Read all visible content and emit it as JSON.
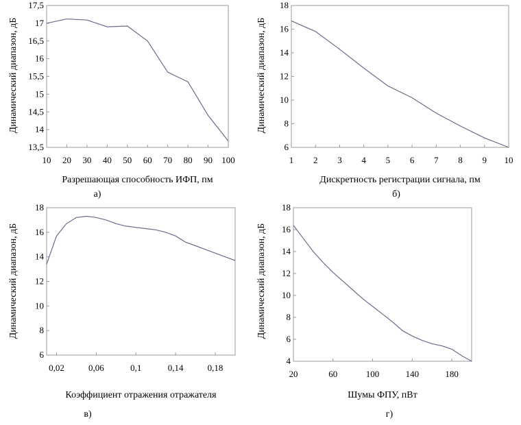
{
  "chart_data": [
    {
      "type": "line",
      "panel_label": "а)",
      "xlabel": "Разрешающая способность ИФП, пм",
      "ylabel": "Динамический диапазон, дБ",
      "xlim": [
        10,
        100
      ],
      "ylim": [
        13.5,
        17.5
      ],
      "x_ticks": [
        10,
        20,
        30,
        40,
        50,
        60,
        70,
        80,
        90,
        100
      ],
      "x_tick_labels": [
        "10",
        "20",
        "30",
        "40",
        "50",
        "60",
        "70",
        "80",
        "90",
        "100"
      ],
      "y_ticks": [
        13.5,
        14,
        14.5,
        15,
        15.5,
        16,
        16.5,
        17,
        17.5
      ],
      "y_tick_labels": [
        "13,5",
        "14",
        "14,5",
        "15",
        "15,5",
        "16",
        "16,5",
        "17",
        "17,5"
      ],
      "series": [
        {
          "x": [
            10,
            20,
            30,
            40,
            50,
            60,
            70,
            80,
            90,
            100
          ],
          "y": [
            17.0,
            17.12,
            17.09,
            16.9,
            16.92,
            16.5,
            15.62,
            15.35,
            14.4,
            13.68
          ]
        }
      ]
    },
    {
      "type": "line",
      "panel_label": "б)",
      "xlabel": "Дискретность регистрации сигнала, пм",
      "ylabel": "Динамический диапазон, дБ",
      "xlim": [
        1,
        10
      ],
      "ylim": [
        6,
        18
      ],
      "x_ticks": [
        1,
        2,
        3,
        4,
        5,
        6,
        7,
        8,
        9,
        10
      ],
      "x_tick_labels": [
        "1",
        "2",
        "3",
        "4",
        "5",
        "6",
        "7",
        "8",
        "9",
        "10"
      ],
      "y_ticks": [
        6,
        8,
        10,
        12,
        14,
        16,
        18
      ],
      "y_tick_labels": [
        "6",
        "8",
        "10",
        "12",
        "14",
        "16",
        "18"
      ],
      "series": [
        {
          "x": [
            1,
            2,
            3,
            4,
            5,
            6,
            7,
            8,
            9,
            10
          ],
          "y": [
            16.7,
            15.8,
            14.3,
            12.7,
            11.2,
            10.2,
            8.9,
            7.8,
            6.8,
            6.0
          ]
        }
      ]
    },
    {
      "type": "line",
      "panel_label": "в)",
      "xlabel": "Коэффициент отражения отражателя",
      "ylabel": "Динамический диапазон, дБ",
      "xlim": [
        0.01,
        0.2
      ],
      "ylim": [
        6,
        18
      ],
      "x_ticks": [
        0.02,
        0.06,
        0.1,
        0.14,
        0.18
      ],
      "x_tick_labels": [
        "0,02",
        "0,06",
        "0,1",
        "0,14",
        "0,18"
      ],
      "y_ticks": [
        6,
        8,
        10,
        12,
        14,
        16,
        18
      ],
      "y_tick_labels": [
        "6",
        "8",
        "10",
        "12",
        "14",
        "16",
        "18"
      ],
      "series": [
        {
          "x": [
            0.01,
            0.02,
            0.03,
            0.04,
            0.05,
            0.06,
            0.07,
            0.08,
            0.09,
            0.1,
            0.11,
            0.12,
            0.13,
            0.14,
            0.15,
            0.16,
            0.17,
            0.18,
            0.19,
            0.2
          ],
          "y": [
            13.4,
            15.7,
            16.7,
            17.2,
            17.3,
            17.2,
            17.0,
            16.7,
            16.5,
            16.4,
            16.3,
            16.2,
            16.0,
            15.7,
            15.2,
            14.9,
            14.6,
            14.3,
            14.0,
            13.7
          ]
        }
      ]
    },
    {
      "type": "line",
      "panel_label": "г)",
      "xlabel": "Шумы ФПУ, пВт",
      "ylabel": "Динамический диапазон, дБ",
      "xlim": [
        20,
        200
      ],
      "ylim": [
        4,
        18
      ],
      "x_ticks": [
        20,
        60,
        100,
        140,
        180
      ],
      "x_tick_labels": [
        "20",
        "60",
        "100",
        "140",
        "180"
      ],
      "y_ticks": [
        4,
        6,
        8,
        10,
        12,
        14,
        16,
        18
      ],
      "y_tick_labels": [
        "4",
        "6",
        "8",
        "10",
        "12",
        "14",
        "16",
        "18"
      ],
      "series": [
        {
          "x": [
            20,
            30,
            40,
            50,
            60,
            70,
            80,
            90,
            100,
            110,
            120,
            130,
            140,
            150,
            160,
            170,
            180,
            190,
            200
          ],
          "y": [
            16.4,
            15.2,
            14.0,
            13.0,
            12.1,
            11.3,
            10.5,
            9.7,
            9.0,
            8.3,
            7.6,
            6.8,
            6.3,
            5.9,
            5.6,
            5.4,
            5.1,
            4.5,
            4.0
          ]
        }
      ]
    }
  ]
}
